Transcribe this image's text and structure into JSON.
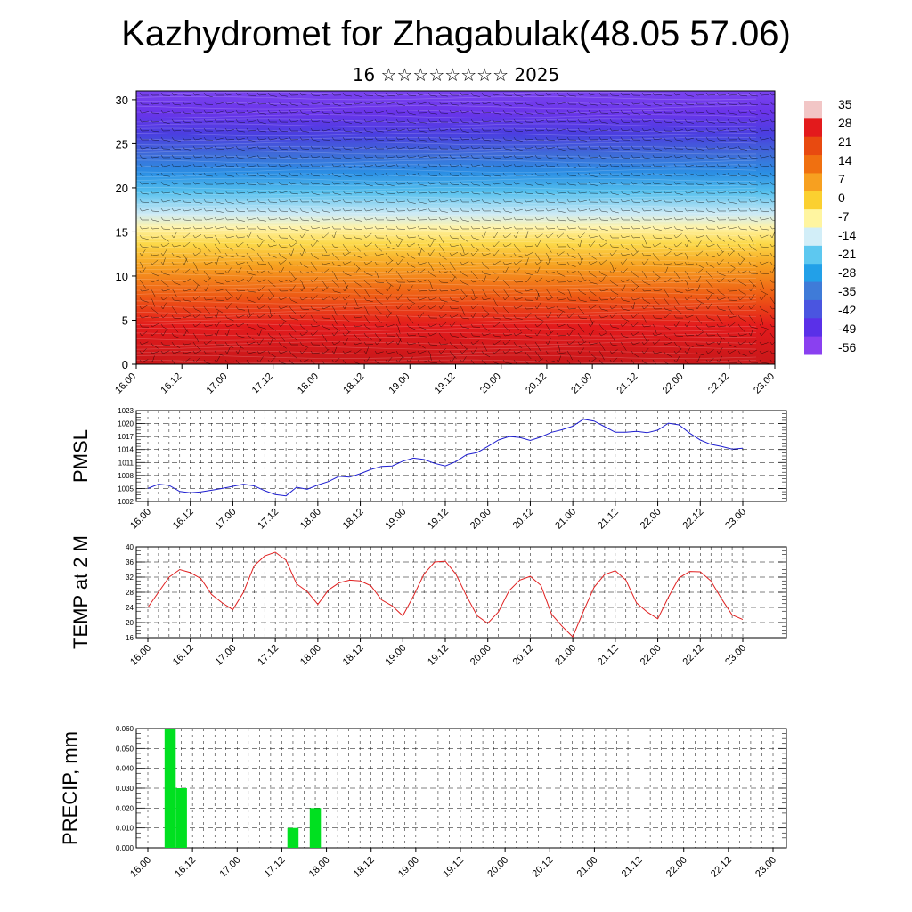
{
  "title": "Kazhydromet for Zhagabulak(48.05 57.06)",
  "subtitle": "16 ☆☆☆☆☆☆☆☆ 2025",
  "x_tick_labels": [
    "16.00",
    "16.12",
    "17.00",
    "17.12",
    "18.00",
    "18.12",
    "19.00",
    "19.12",
    "20.00",
    "20.12",
    "21.00",
    "21.12",
    "22.00",
    "22.12",
    "23.00"
  ],
  "chart_data": [
    {
      "type": "heatmap",
      "title": "",
      "xlabel": "",
      "ylabel": "",
      "x_ticks": [
        "16.00",
        "16.12",
        "17.00",
        "17.12",
        "18.00",
        "18.12",
        "19.00",
        "19.12",
        "20.00",
        "20.12",
        "21.00",
        "21.12",
        "22.00",
        "22.12",
        "23.00"
      ],
      "y_ticks": [
        0,
        5,
        10,
        15,
        20,
        25,
        30
      ],
      "ylim": [
        0,
        31
      ],
      "colorbar_labels": [
        "35",
        "28",
        "21",
        "14",
        "7",
        "0",
        "-7",
        "-14",
        "-21",
        "-28",
        "-35",
        "-42",
        "-49",
        "-56"
      ],
      "colorbar_colors": [
        "#f2c6c6",
        "#e31a1c",
        "#e84a10",
        "#f07010",
        "#f7a020",
        "#fbd030",
        "#fff5a0",
        "#d2eef8",
        "#5dc8f0",
        "#22a0e8",
        "#3f7bd8",
        "#4a55e0",
        "#5a30e8",
        "#8a40f0"
      ],
      "overlay": "wind barbs"
    },
    {
      "type": "line",
      "ylabel": "PMSL",
      "ylim": [
        1002,
        1023
      ],
      "y_ticks": [
        1002,
        1005,
        1008,
        1011,
        1014,
        1017,
        1020,
        1023
      ],
      "x": [
        0,
        1,
        2,
        3,
        4,
        5,
        6,
        7,
        8,
        9,
        10,
        11,
        12,
        13,
        14,
        15,
        16,
        17,
        18,
        19,
        20,
        21,
        22,
        23,
        24,
        25,
        26,
        27,
        28,
        29,
        30,
        31,
        32,
        33,
        34,
        35,
        36,
        37,
        38,
        39,
        40,
        41,
        42,
        43,
        44,
        45,
        46,
        47,
        48,
        49,
        50,
        51,
        52,
        53,
        54,
        55,
        56
      ],
      "series": [
        {
          "color": "#1f1fd0",
          "values": [
            1005,
            1006,
            1005.7,
            1004.3,
            1004,
            1004.2,
            1004.6,
            1005,
            1005.5,
            1006,
            1005.6,
            1004.5,
            1003.6,
            1003.3,
            1005.3,
            1004.8,
            1005.8,
            1006.6,
            1007.8,
            1007.6,
            1008.4,
            1009.4,
            1010.1,
            1010.2,
            1011.3,
            1012,
            1011.7,
            1010.8,
            1010.2,
            1011.2,
            1012.8,
            1013.3,
            1014.7,
            1016.2,
            1017,
            1016.8,
            1016.1,
            1016.9,
            1018,
            1018.6,
            1019.4,
            1021,
            1020.6,
            1019.3,
            1018,
            1018,
            1018.2,
            1017.9,
            1018.5,
            1020.1,
            1019.7,
            1017.8,
            1016.2,
            1015.2,
            1014.7,
            1014.1,
            1014.3
          ]
        }
      ]
    },
    {
      "type": "line",
      "ylabel": "TEMP at 2 M",
      "ylim": [
        16,
        40
      ],
      "y_ticks": [
        16,
        20,
        24,
        28,
        32,
        36,
        40
      ],
      "x": [
        0,
        1,
        2,
        3,
        4,
        5,
        6,
        7,
        8,
        9,
        10,
        11,
        12,
        13,
        14,
        15,
        16,
        17,
        18,
        19,
        20,
        21,
        22,
        23,
        24,
        25,
        26,
        27,
        28,
        29,
        30,
        31,
        32,
        33,
        34,
        35,
        36,
        37,
        38,
        39,
        40,
        41,
        42,
        43,
        44,
        45,
        46,
        47,
        48,
        49,
        50,
        51,
        52,
        53,
        54,
        55,
        56
      ],
      "series": [
        {
          "color": "#e02020",
          "values": [
            24,
            28,
            32,
            34,
            33.2,
            31.6,
            27.4,
            25.2,
            23.4,
            28,
            35,
            37.6,
            38.6,
            36.5,
            30.2,
            28.2,
            24.8,
            28.6,
            30.5,
            31.2,
            31,
            29.7,
            26,
            24.4,
            21.8,
            27,
            32.8,
            36,
            36.2,
            32.8,
            27,
            21.8,
            19.8,
            22.8,
            28.4,
            31.2,
            32.2,
            29.8,
            22.2,
            19,
            16.2,
            23,
            29.3,
            32.7,
            33.7,
            31.2,
            25.2,
            22.8,
            21,
            26.7,
            31.8,
            33.5,
            33.4,
            31,
            26.3,
            22,
            20.8
          ]
        }
      ]
    },
    {
      "type": "bar",
      "ylabel": "PRECIP, mm",
      "ylim": [
        0,
        0.06
      ],
      "y_tick_labels": [
        "0.000",
        "0.010",
        "0.020",
        "0.030",
        "0.040",
        "0.050",
        "0.060"
      ],
      "color": "#00e020",
      "bars": [
        {
          "x": "16.06",
          "value": 0.06
        },
        {
          "x": "16.09",
          "value": 0.03
        },
        {
          "x": "17.15",
          "value": 0.01
        },
        {
          "x": "17.21",
          "value": 0.02
        }
      ]
    }
  ]
}
